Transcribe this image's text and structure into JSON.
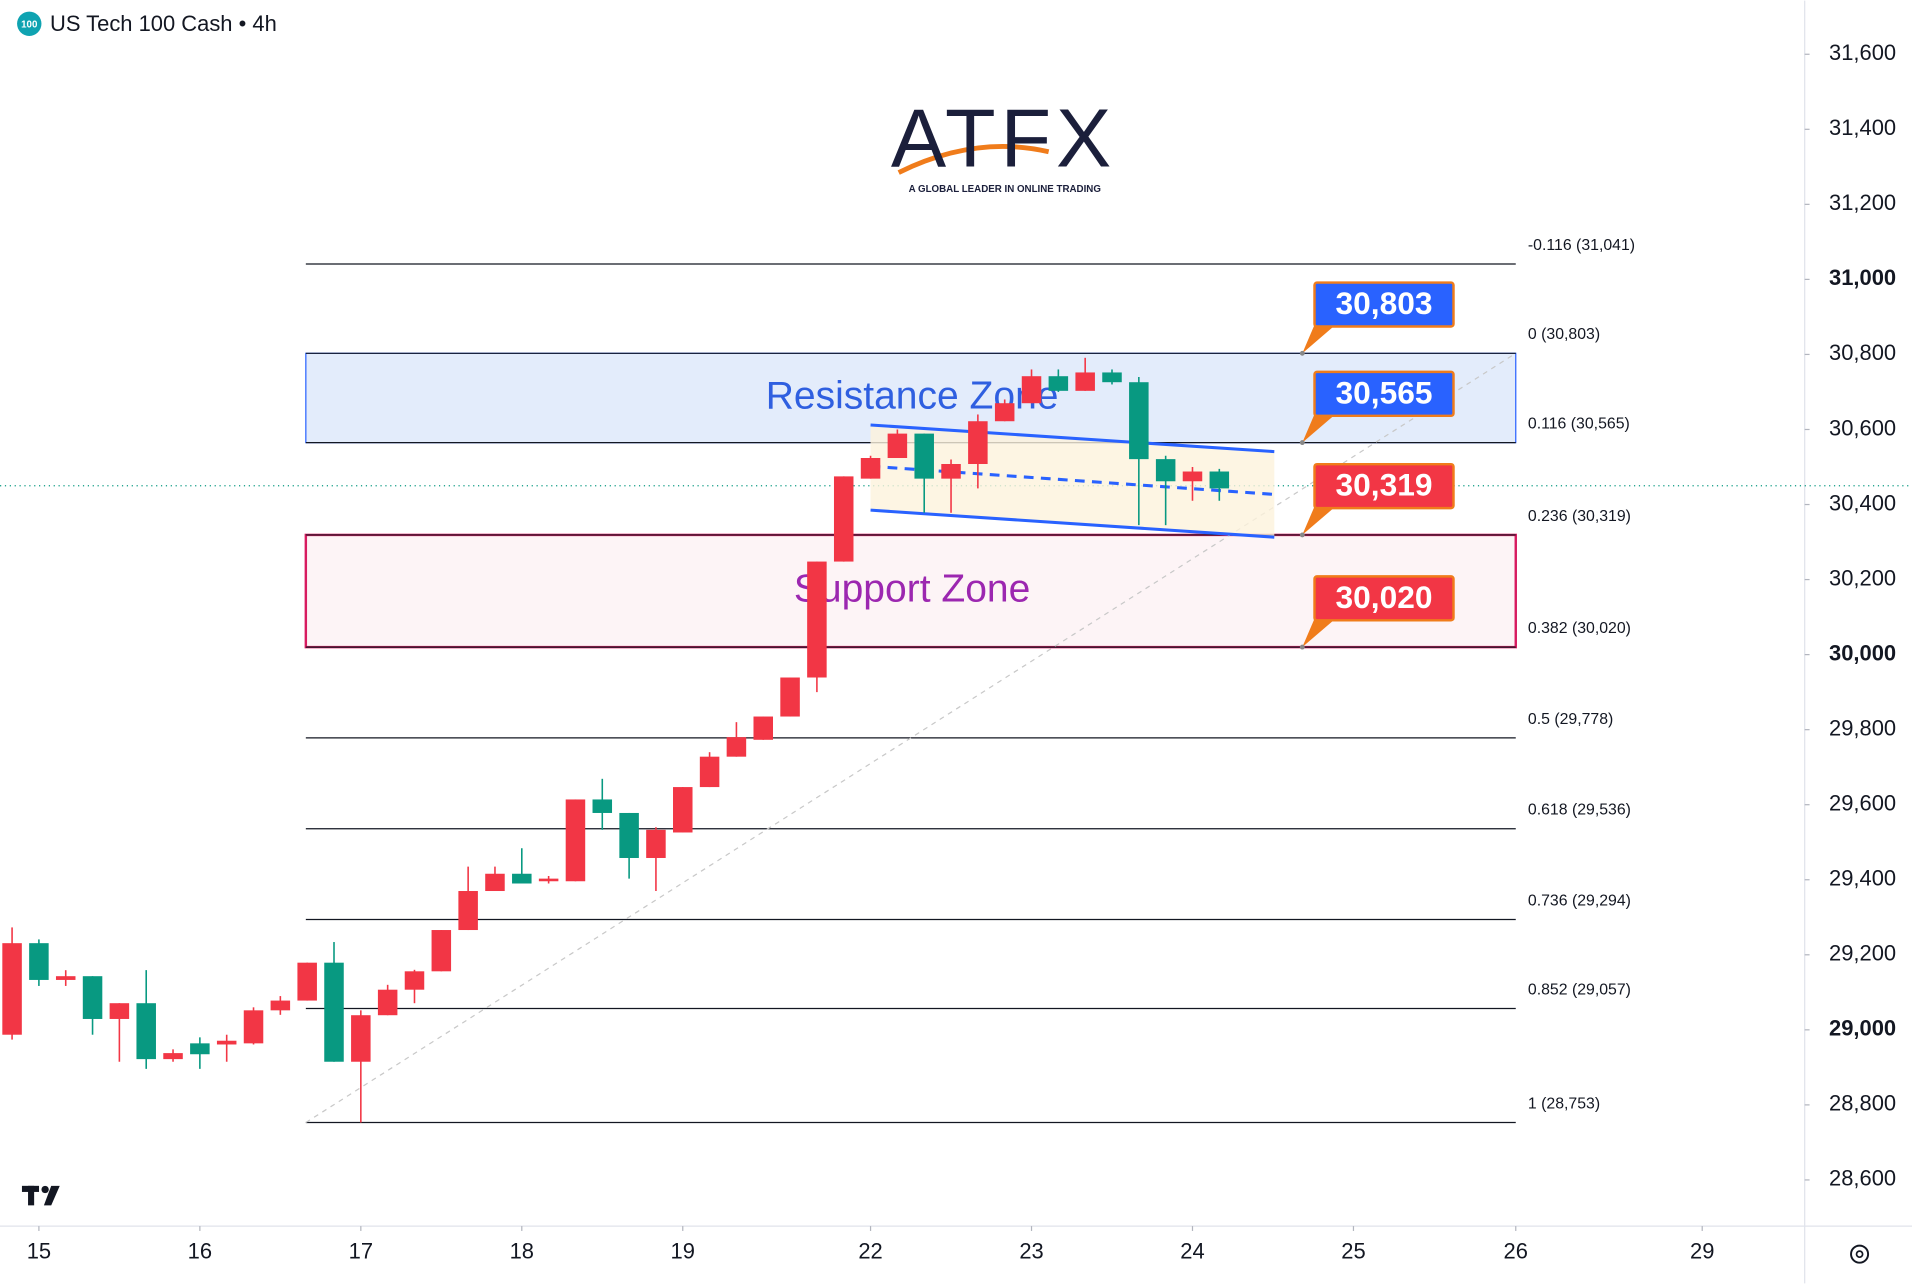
{
  "header": {
    "badge": "100",
    "title": "US Tech 100 Cash • 4h"
  },
  "logo": {
    "name": "ATFX",
    "tagline": "A GLOBAL LEADER IN ONLINE TRADING"
  },
  "chart_data": {
    "type": "candlestick",
    "x": [
      0,
      1,
      2,
      3,
      4,
      5,
      6,
      7,
      8,
      9,
      10,
      11,
      12,
      13,
      14,
      15,
      16,
      17,
      18,
      19,
      20,
      21,
      22,
      23,
      24,
      25,
      26,
      27,
      28,
      29,
      30,
      31,
      32,
      33,
      34,
      35,
      36,
      37,
      38,
      39,
      40,
      41,
      42,
      43,
      44,
      45
    ],
    "open": [
      28987,
      29231,
      29133,
      29143,
      29029,
      29071,
      28922,
      28964,
      28961,
      28964,
      29052,
      29078,
      29179,
      28915,
      29039,
      29107,
      29156,
      29266,
      29370,
      29416,
      29396,
      29396,
      29614,
      29578,
      29458,
      29526,
      29647,
      29728,
      29773,
      29835,
      29939,
      30248,
      30469,
      30524,
      30589,
      30469,
      30508,
      30622,
      30670,
      30742,
      30703,
      30752,
      30726,
      30521,
      30462,
      30488
    ],
    "high": [
      29273,
      29241,
      29159,
      29143,
      29071,
      29159,
      28948,
      28980,
      28987,
      29060,
      29090,
      29179,
      29234,
      29052,
      29120,
      29160,
      29266,
      29435,
      29435,
      29484,
      29410,
      29614,
      29669,
      29578,
      29540,
      29647,
      29740,
      29820,
      29835,
      29939,
      30248,
      30475,
      30530,
      30600,
      30589,
      30520,
      30640,
      30680,
      30760,
      30760,
      30791,
      30760,
      30740,
      30530,
      30500,
      30495
    ],
    "low": [
      28974,
      29117,
      29117,
      28987,
      28915,
      28896,
      28915,
      28896,
      28915,
      28961,
      29040,
      29078,
      28915,
      28753,
      29039,
      29071,
      29156,
      29266,
      29370,
      29390,
      29390,
      29396,
      29533,
      29403,
      29370,
      29526,
      29647,
      29728,
      29773,
      29835,
      29900,
      30248,
      30469,
      30524,
      30378,
      30378,
      30443,
      30622,
      30670,
      30700,
      30703,
      30720,
      30345,
      30345,
      30410,
      30410
    ],
    "close": [
      29231,
      29133,
      29143,
      29029,
      29071,
      28922,
      28938,
      28935,
      28971,
      29052,
      29078,
      29179,
      28915,
      29039,
      29107,
      29156,
      29266,
      29370,
      29416,
      29390,
      29403,
      29614,
      29578,
      29458,
      29533,
      29647,
      29728,
      29780,
      29835,
      29939,
      30248,
      30475,
      30524,
      30589,
      30469,
      30508,
      30622,
      30670,
      30742,
      30703,
      30752,
      30726,
      30521,
      30462,
      30488,
      30443
    ],
    "up_color": "#f23645",
    "down_color": "#089981",
    "xlim": [
      -0.45,
      66.82
    ],
    "xticks": [
      {
        "value": 1,
        "label": "15"
      },
      {
        "value": 7,
        "label": "16"
      },
      {
        "value": 13,
        "label": "17"
      },
      {
        "value": 19,
        "label": "18"
      },
      {
        "value": 25,
        "label": "19"
      },
      {
        "value": 32,
        "label": "22"
      },
      {
        "value": 38,
        "label": "23"
      },
      {
        "value": 44,
        "label": "24"
      },
      {
        "value": 50,
        "label": "25"
      },
      {
        "value": 56.05,
        "label": "26"
      },
      {
        "value": 63,
        "label": "29"
      }
    ],
    "ylim": [
      28477,
      31743
    ],
    "yticks": [
      {
        "value": 31600,
        "label": "31,600"
      },
      {
        "value": 31400,
        "label": "31,400"
      },
      {
        "value": 31200,
        "label": "31,200"
      },
      {
        "value": 31000,
        "label": "31,000"
      },
      {
        "value": 30800,
        "label": "30,800"
      },
      {
        "value": 30600,
        "label": "30,600"
      },
      {
        "value": 30400,
        "label": "30,400"
      },
      {
        "value": 30200,
        "label": "30,200"
      },
      {
        "value": 30000,
        "label": "30,000"
      },
      {
        "value": 29800,
        "label": "29,800"
      },
      {
        "value": 29600,
        "label": "29,600"
      },
      {
        "value": 29400,
        "label": "29,400"
      },
      {
        "value": 29200,
        "label": "29,200"
      },
      {
        "value": 29000,
        "label": "29,000"
      },
      {
        "value": 28800,
        "label": "28,800"
      },
      {
        "value": 28600,
        "label": "28,600"
      }
    ],
    "fib_x": [
      10.95,
      56.05
    ],
    "fib_levels": [
      {
        "value": 31041,
        "label": "-0.116 (31,041)"
      },
      {
        "value": 30803,
        "label": "0 (30,803)"
      },
      {
        "value": 30565,
        "label": "0.116 (30,565)"
      },
      {
        "value": 30319,
        "label": "0.236 (30,319)"
      },
      {
        "value": 30020,
        "label": "0.382 (30,020)"
      },
      {
        "value": 29778,
        "label": "0.5 (29,778)"
      },
      {
        "value": 29536,
        "label": "0.618 (29,536)"
      },
      {
        "value": 29294,
        "label": "0.736 (29,294)"
      },
      {
        "value": 29057,
        "label": "0.852 (29,057)"
      },
      {
        "value": 28753,
        "label": "1 (28,753)"
      }
    ],
    "zones": [
      {
        "name": "Resistance Zone",
        "range": [
          30565,
          30803
        ],
        "color": "#2962ff",
        "fill": "#e3ecfb",
        "label_color": "#2f5fe0"
      },
      {
        "name": "Support Zone",
        "range": [
          30020,
          30319
        ],
        "color": "#d81b60",
        "fill": "#fdf4f6",
        "label_color": "#9c27b0"
      }
    ],
    "channel": {
      "x": [
        32,
        47.05
      ],
      "upper": [
        30612,
        30541
      ],
      "middle": [
        30502,
        30427
      ],
      "lower": [
        30385,
        30313
      ],
      "color": "#2962ff",
      "fill": "#fdf3dc"
    },
    "trendline": {
      "x": [
        10.95,
        56.05
      ],
      "values": [
        28753,
        30803
      ]
    },
    "callouts": [
      {
        "value": 30803,
        "label": "30,803",
        "color": "#2962ff"
      },
      {
        "value": 30565,
        "label": "30,565",
        "color": "#2962ff"
      },
      {
        "value": 30319,
        "label": "30,319",
        "color": "#f23645"
      },
      {
        "value": 30020,
        "label": "30,020",
        "color": "#f23645"
      }
    ],
    "last_price": 30450
  }
}
